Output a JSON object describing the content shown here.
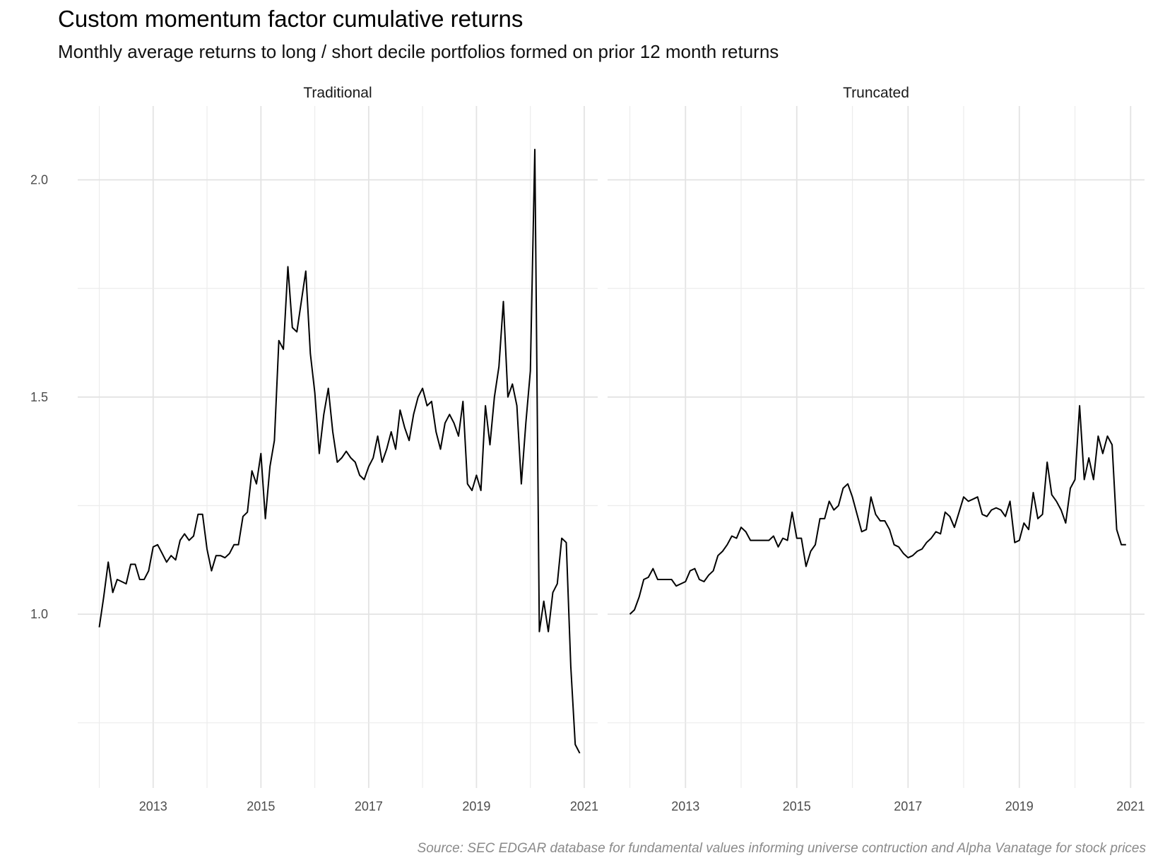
{
  "chart_data": {
    "type": "line",
    "title": "Custom momentum factor cumulative returns",
    "subtitle": "Monthly average returns to long / short decile portfolios formed on prior 12 month returns",
    "caption": "Source: SEC EDGAR database for fundamental values informing universe contruction and Alpha Vanatage for stock prices",
    "xlabel": "",
    "ylabel": "",
    "xlim": [
      2011.6,
      2021.25
    ],
    "ylim": [
      0.6,
      2.17
    ],
    "x_ticks": [
      2013,
      2015,
      2017,
      2019,
      2021
    ],
    "x_tick_labels": [
      "2013",
      "2015",
      "2017",
      "2019",
      "2021"
    ],
    "y_ticks": [
      1.0,
      1.5,
      2.0
    ],
    "y_tick_labels": [
      "1.0",
      "1.5",
      "2.0"
    ],
    "grid": true,
    "line_color": "#000000",
    "panels": [
      {
        "label": "Traditional",
        "x": [
          2012.0,
          2012.083,
          2012.167,
          2012.25,
          2012.333,
          2012.417,
          2012.5,
          2012.583,
          2012.667,
          2012.75,
          2012.833,
          2012.917,
          2013.0,
          2013.083,
          2013.167,
          2013.25,
          2013.333,
          2013.417,
          2013.5,
          2013.583,
          2013.667,
          2013.75,
          2013.833,
          2013.917,
          2014.0,
          2014.083,
          2014.167,
          2014.25,
          2014.333,
          2014.417,
          2014.5,
          2014.583,
          2014.667,
          2014.75,
          2014.833,
          2014.917,
          2015.0,
          2015.083,
          2015.167,
          2015.25,
          2015.333,
          2015.417,
          2015.5,
          2015.583,
          2015.667,
          2015.75,
          2015.833,
          2015.917,
          2016.0,
          2016.083,
          2016.167,
          2016.25,
          2016.333,
          2016.417,
          2016.5,
          2016.583,
          2016.667,
          2016.75,
          2016.833,
          2016.917,
          2017.0,
          2017.083,
          2017.167,
          2017.25,
          2017.333,
          2017.417,
          2017.5,
          2017.583,
          2017.667,
          2017.75,
          2017.833,
          2017.917,
          2018.0,
          2018.083,
          2018.167,
          2018.25,
          2018.333,
          2018.417,
          2018.5,
          2018.583,
          2018.667,
          2018.75,
          2018.833,
          2018.917,
          2019.0,
          2019.083,
          2019.167,
          2019.25,
          2019.333,
          2019.417,
          2019.5,
          2019.583,
          2019.667,
          2019.75,
          2019.833,
          2019.917,
          2020.0,
          2020.083,
          2020.167,
          2020.25,
          2020.333,
          2020.417,
          2020.5,
          2020.583,
          2020.667,
          2020.75,
          2020.833,
          2020.917
        ],
        "y": [
          0.97,
          1.04,
          1.12,
          1.05,
          1.08,
          1.075,
          1.07,
          1.115,
          1.115,
          1.08,
          1.08,
          1.1,
          1.155,
          1.16,
          1.14,
          1.12,
          1.135,
          1.125,
          1.17,
          1.185,
          1.17,
          1.18,
          1.23,
          1.23,
          1.15,
          1.1,
          1.135,
          1.135,
          1.13,
          1.14,
          1.16,
          1.16,
          1.225,
          1.235,
          1.33,
          1.3,
          1.37,
          1.22,
          1.34,
          1.4,
          1.63,
          1.61,
          1.8,
          1.66,
          1.65,
          1.72,
          1.79,
          1.6,
          1.51,
          1.37,
          1.46,
          1.52,
          1.42,
          1.35,
          1.36,
          1.375,
          1.36,
          1.35,
          1.32,
          1.31,
          1.34,
          1.36,
          1.41,
          1.35,
          1.38,
          1.42,
          1.38,
          1.47,
          1.43,
          1.4,
          1.46,
          1.5,
          1.52,
          1.48,
          1.49,
          1.42,
          1.38,
          1.44,
          1.46,
          1.44,
          1.41,
          1.49,
          1.3,
          1.285,
          1.32,
          1.285,
          1.48,
          1.39,
          1.5,
          1.57,
          1.72,
          1.5,
          1.53,
          1.48,
          1.3,
          1.44,
          1.56,
          2.07,
          0.96,
          1.03,
          0.96,
          1.05,
          1.07,
          1.175,
          1.165,
          0.88,
          0.7,
          0.68
        ]
      },
      {
        "label": "Truncated",
        "x": [
          2012.0,
          2012.083,
          2012.167,
          2012.25,
          2012.333,
          2012.417,
          2012.5,
          2012.583,
          2012.667,
          2012.75,
          2012.833,
          2012.917,
          2013.0,
          2013.083,
          2013.167,
          2013.25,
          2013.333,
          2013.417,
          2013.5,
          2013.583,
          2013.667,
          2013.75,
          2013.833,
          2013.917,
          2014.0,
          2014.083,
          2014.167,
          2014.25,
          2014.333,
          2014.417,
          2014.5,
          2014.583,
          2014.667,
          2014.75,
          2014.833,
          2014.917,
          2015.0,
          2015.083,
          2015.167,
          2015.25,
          2015.333,
          2015.417,
          2015.5,
          2015.583,
          2015.667,
          2015.75,
          2015.833,
          2015.917,
          2016.0,
          2016.083,
          2016.167,
          2016.25,
          2016.333,
          2016.417,
          2016.5,
          2016.583,
          2016.667,
          2016.75,
          2016.833,
          2016.917,
          2017.0,
          2017.083,
          2017.167,
          2017.25,
          2017.333,
          2017.417,
          2017.5,
          2017.583,
          2017.667,
          2017.75,
          2017.833,
          2017.917,
          2018.0,
          2018.083,
          2018.167,
          2018.25,
          2018.333,
          2018.417,
          2018.5,
          2018.583,
          2018.667,
          2018.75,
          2018.833,
          2018.917,
          2019.0,
          2019.083,
          2019.167,
          2019.25,
          2019.333,
          2019.417,
          2019.5,
          2019.583,
          2019.667,
          2019.75,
          2019.833,
          2019.917,
          2020.0,
          2020.083,
          2020.167,
          2020.25,
          2020.333,
          2020.417,
          2020.5,
          2020.583,
          2020.667,
          2020.75,
          2020.833,
          2020.917
        ],
        "y": [
          1.0,
          1.01,
          1.04,
          1.08,
          1.085,
          1.105,
          1.08,
          1.08,
          1.08,
          1.08,
          1.065,
          1.07,
          1.075,
          1.1,
          1.105,
          1.08,
          1.075,
          1.09,
          1.1,
          1.135,
          1.145,
          1.16,
          1.18,
          1.175,
          1.2,
          1.19,
          1.17,
          1.17,
          1.17,
          1.17,
          1.17,
          1.18,
          1.155,
          1.175,
          1.17,
          1.235,
          1.175,
          1.175,
          1.11,
          1.145,
          1.16,
          1.22,
          1.22,
          1.26,
          1.24,
          1.25,
          1.29,
          1.3,
          1.27,
          1.23,
          1.19,
          1.195,
          1.27,
          1.23,
          1.215,
          1.215,
          1.195,
          1.16,
          1.155,
          1.14,
          1.13,
          1.135,
          1.145,
          1.15,
          1.165,
          1.175,
          1.19,
          1.185,
          1.235,
          1.225,
          1.2,
          1.235,
          1.27,
          1.26,
          1.265,
          1.27,
          1.23,
          1.225,
          1.24,
          1.245,
          1.24,
          1.225,
          1.26,
          1.165,
          1.17,
          1.21,
          1.195,
          1.28,
          1.22,
          1.23,
          1.35,
          1.275,
          1.26,
          1.24,
          1.21,
          1.29,
          1.31,
          1.48,
          1.31,
          1.36,
          1.31,
          1.41,
          1.37,
          1.41,
          1.39,
          1.195,
          1.16,
          1.16
        ]
      }
    ]
  }
}
